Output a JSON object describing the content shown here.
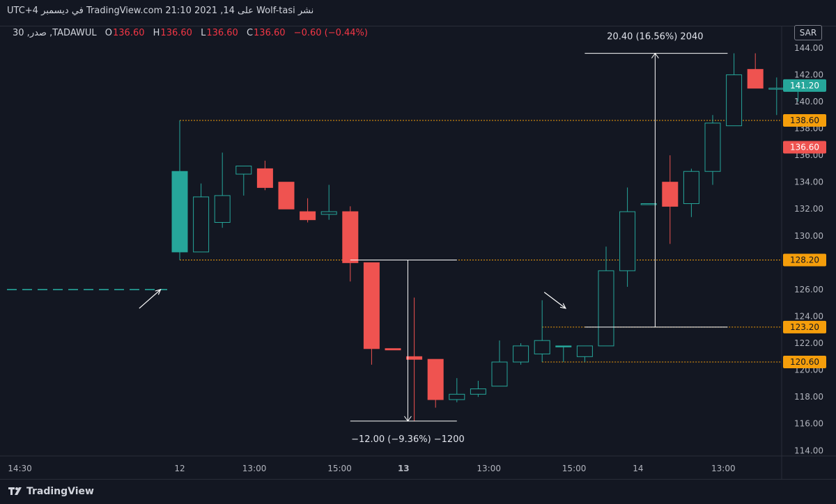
{
  "header": {
    "published_line": "نشر Wolf-tasi على TradingView.com 21:10 2021 ,14 في ديسمبر UTC+4",
    "symbol_line": "30 ,صدر ,TADAWUL",
    "open_label": "O",
    "open": "136.60",
    "high_label": "H",
    "high": "136.60",
    "low_label": "L",
    "low": "136.60",
    "close_label": "C",
    "close": "136.60",
    "change": "−0.60 (−0.44%)",
    "currency": "SAR"
  },
  "colors": {
    "background": "#131722",
    "up": "#26a69a",
    "down": "#ef5350",
    "level_line": "#f59e0b",
    "axis_text": "#b2b5be",
    "measure": "#ffffff"
  },
  "chart_data": {
    "type": "candlestick",
    "interval": "30",
    "ylim": [
      113.6,
      145.6
    ],
    "y_ticks": [
      114,
      116,
      118,
      120,
      122,
      124,
      126,
      128,
      130,
      132,
      134,
      136,
      138,
      140,
      142,
      144
    ],
    "x_ticks": [
      {
        "i": -10.5,
        "label": "13:00",
        "bold": false
      },
      {
        "i": -7.5,
        "label": "14:30",
        "bold": false
      },
      {
        "i": 0,
        "label": "12",
        "bold": false
      },
      {
        "i": 3.5,
        "label": "13:00",
        "bold": false
      },
      {
        "i": 7.5,
        "label": "15:00",
        "bold": false
      },
      {
        "i": 10.5,
        "label": "13",
        "bold": true
      },
      {
        "i": 14.5,
        "label": "13:00",
        "bold": false
      },
      {
        "i": 18.5,
        "label": "15:00",
        "bold": false
      },
      {
        "i": 21.5,
        "label": "14",
        "bold": false
      },
      {
        "i": 25.5,
        "label": "13:00",
        "bold": false
      }
    ],
    "prev_close_dashed": 126.0,
    "candles": [
      {
        "o": 128.8,
        "h": 138.6,
        "l": 128.2,
        "c": 134.8,
        "solid": true
      },
      {
        "o": 128.8,
        "h": 133.9,
        "l": 128.8,
        "c": 132.9
      },
      {
        "o": 131.0,
        "h": 136.2,
        "l": 130.6,
        "c": 133.0
      },
      {
        "o": 134.6,
        "h": 135.2,
        "l": 133.0,
        "c": 135.2
      },
      {
        "o": 135.0,
        "h": 135.6,
        "l": 133.4,
        "c": 133.6
      },
      {
        "o": 134.0,
        "h": 134.0,
        "l": 132.0,
        "c": 132.0
      },
      {
        "o": 131.8,
        "h": 132.8,
        "l": 131.0,
        "c": 131.2
      },
      {
        "o": 131.6,
        "h": 133.8,
        "l": 131.2,
        "c": 131.8
      },
      {
        "o": 131.8,
        "h": 132.2,
        "l": 126.6,
        "c": 128.0
      },
      {
        "o": 128.0,
        "h": 128.0,
        "l": 120.4,
        "c": 121.6
      },
      {
        "o": 121.6,
        "h": 121.6,
        "l": 121.6,
        "c": 121.5
      },
      {
        "o": 121.0,
        "h": 125.4,
        "l": 116.2,
        "c": 120.8
      },
      {
        "o": 120.8,
        "h": 120.8,
        "l": 117.2,
        "c": 117.8
      },
      {
        "o": 117.8,
        "h": 119.4,
        "l": 117.6,
        "c": 118.2
      },
      {
        "o": 118.2,
        "h": 119.2,
        "l": 118.0,
        "c": 118.6
      },
      {
        "o": 118.8,
        "h": 122.2,
        "l": 118.8,
        "c": 120.6
      },
      {
        "o": 120.6,
        "h": 122.0,
        "l": 120.4,
        "c": 121.8
      },
      {
        "o": 121.2,
        "h": 125.2,
        "l": 120.6,
        "c": 122.2
      },
      {
        "o": 121.8,
        "h": 121.8,
        "l": 120.6,
        "c": 121.8,
        "solid": true
      },
      {
        "o": 121.0,
        "h": 121.8,
        "l": 120.6,
        "c": 121.8
      },
      {
        "o": 121.8,
        "h": 129.2,
        "l": 121.8,
        "c": 127.4
      },
      {
        "o": 127.4,
        "h": 133.6,
        "l": 126.2,
        "c": 131.8
      },
      {
        "o": 132.4,
        "h": 132.4,
        "l": 132.4,
        "c": 132.4
      },
      {
        "o": 134.0,
        "h": 136.0,
        "l": 129.4,
        "c": 132.2
      },
      {
        "o": 132.4,
        "h": 135.0,
        "l": 131.4,
        "c": 134.8
      },
      {
        "o": 134.8,
        "h": 139.0,
        "l": 133.8,
        "c": 138.4
      },
      {
        "o": 138.2,
        "h": 143.6,
        "l": 138.2,
        "c": 142.0
      },
      {
        "o": 142.4,
        "h": 143.6,
        "l": 141.0,
        "c": 141.0
      },
      {
        "o": 141.0,
        "h": 141.8,
        "l": 139.0,
        "c": 141.0
      },
      {
        "o": 141.0,
        "h": 141.6,
        "l": 140.0,
        "c": 141.2
      }
    ],
    "levels": [
      {
        "price": 138.6,
        "label": "138.60"
      },
      {
        "price": 128.2,
        "label": "128.20"
      },
      {
        "price": 123.2,
        "label": "123.20"
      },
      {
        "price": 120.6,
        "label": "120.60"
      }
    ],
    "price_tags": [
      {
        "price": 141.2,
        "label": "141.20",
        "kind": "last-up"
      },
      {
        "price": 136.6,
        "label": "136.60",
        "kind": "down"
      }
    ],
    "measures": [
      {
        "from_price": 128.2,
        "to_price": 116.2,
        "start_i": 8,
        "end_i": 13,
        "arrow_i": 10.7,
        "text": "−12.00 (−9.36%) −1200",
        "text_pos": "below"
      },
      {
        "from_price": 123.2,
        "to_price": 143.6,
        "start_i": 19,
        "end_i": 25.7,
        "arrow_i": 22.3,
        "text": "20.40 (16.56%) 2040",
        "text_pos": "above"
      }
    ],
    "arrows": [
      {
        "from": [
          -1.9,
          124.6
        ],
        "to": [
          -0.9,
          126.0
        ]
      },
      {
        "from": [
          17.1,
          125.8
        ],
        "to": [
          18.1,
          124.6
        ]
      }
    ]
  },
  "footer": {
    "brand": "TradingView"
  }
}
